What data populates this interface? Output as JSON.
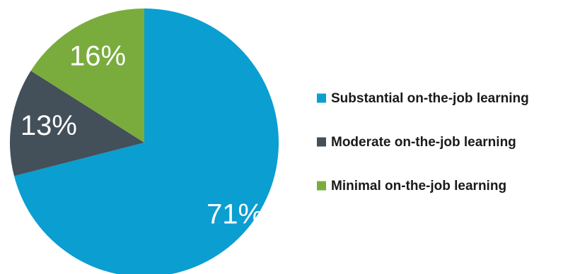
{
  "chart_data": {
    "type": "pie",
    "categories": [
      "Substantial on-the-job learning",
      "Moderate on-the-job learning",
      "Minimal on-the-job learning"
    ],
    "values": [
      71,
      13,
      16
    ],
    "data_labels": [
      "71%",
      "13%",
      "16%"
    ],
    "colors": [
      "#0b9ed1",
      "#434f59",
      "#7aac3d"
    ],
    "start_angle_deg": 0,
    "direction": "clockwise",
    "legend_position": "right"
  }
}
